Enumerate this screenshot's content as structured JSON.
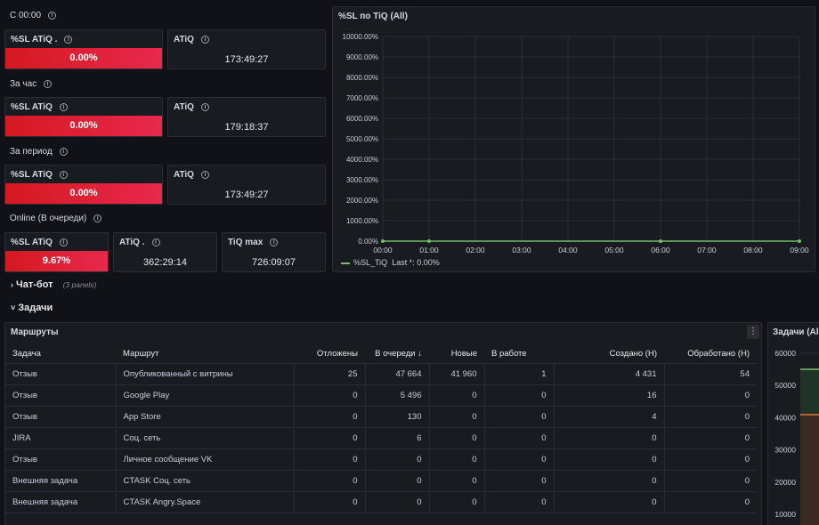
{
  "rows": {
    "r1": "С 00:00",
    "r2": "За час",
    "r3": "За период",
    "r4": "Online (В очереди)"
  },
  "stats": {
    "s1": {
      "sl_title": "%SL ATiQ .",
      "sl_value": "0.00%",
      "atiq_title": "ATiQ",
      "atiq_value": "173:49:27"
    },
    "s2": {
      "sl_title": "%SL ATiQ",
      "sl_value": "0.00%",
      "atiq_title": "ATiQ",
      "atiq_value": "179:18:37"
    },
    "s3": {
      "sl_title": "%SL ATiQ",
      "sl_value": "0.00%",
      "atiq_title": "ATiQ",
      "atiq_value": "173:49:27"
    },
    "s4": {
      "sl_title": "%SL ATiQ",
      "sl_value": "9.67%",
      "atiq_title": "ATiQ .",
      "atiq_value": "362:29:14",
      "tiq_title": "TiQ max",
      "tiq_value": "726:09:07"
    }
  },
  "chart_panel": {
    "title": "%SL по TiQ (All)",
    "legend_name": "%SL_TiQ",
    "legend_last": "Last *: 0.00%"
  },
  "chart_data": {
    "type": "line",
    "y_ticks": [
      "0.00%",
      "1000.00%",
      "2000.00%",
      "3000.00%",
      "4000.00%",
      "5000.00%",
      "6000.00%",
      "7000.00%",
      "8000.00%",
      "9000.00%",
      "10000.00%"
    ],
    "x_ticks": [
      "00:00",
      "01:00",
      "02:00",
      "03:00",
      "04:00",
      "05:00",
      "06:00",
      "07:00",
      "08:00",
      "09:00"
    ],
    "ylim": [
      0,
      10000
    ],
    "series": [
      {
        "name": "%SL_TiQ",
        "color": "#73bf69",
        "x": [
          0,
          1,
          6,
          9
        ],
        "y": [
          0,
          0,
          0,
          0
        ]
      }
    ]
  },
  "sections": {
    "chatbot": "Чат-бот",
    "chatbot_count": "(3 panels)",
    "tasks": "Задачи"
  },
  "routes_panel": {
    "title": "Маршруты",
    "menu": "⋮",
    "headers": [
      "Задача",
      "Маршрут",
      "Отложены",
      "В очереди",
      "Новые",
      "В работе",
      "Создано (H)",
      "Обработано (H)"
    ],
    "sort_indicator": "↓",
    "rows": [
      [
        "Отзыв",
        "Опубликованный с витрины",
        "25",
        "47 664",
        "41 960",
        "1",
        "4 431",
        "54"
      ],
      [
        "Отзыв",
        "Google Play",
        "0",
        "5 496",
        "0",
        "0",
        "16",
        "0"
      ],
      [
        "Отзыв",
        "App Store",
        "0",
        "130",
        "0",
        "0",
        "4",
        "0"
      ],
      [
        "JIRA",
        "Соц. сеть",
        "0",
        "6",
        "0",
        "0",
        "0",
        "0"
      ],
      [
        "Отзыв",
        "Личное сообщение VK",
        "0",
        "0",
        "0",
        "0",
        "0",
        "0"
      ],
      [
        "Внешняя задача",
        "CTASK Соц. сеть",
        "0",
        "0",
        "0",
        "0",
        "0",
        "0"
      ],
      [
        "Внешняя задача",
        "CTASK Angry.Space",
        "0",
        "0",
        "0",
        "0",
        "0",
        "0"
      ]
    ]
  },
  "tasks_panel": {
    "title": "Задачи (All",
    "y_ticks": [
      "60000",
      "50000",
      "40000",
      "30000",
      "20000",
      "10000"
    ]
  }
}
